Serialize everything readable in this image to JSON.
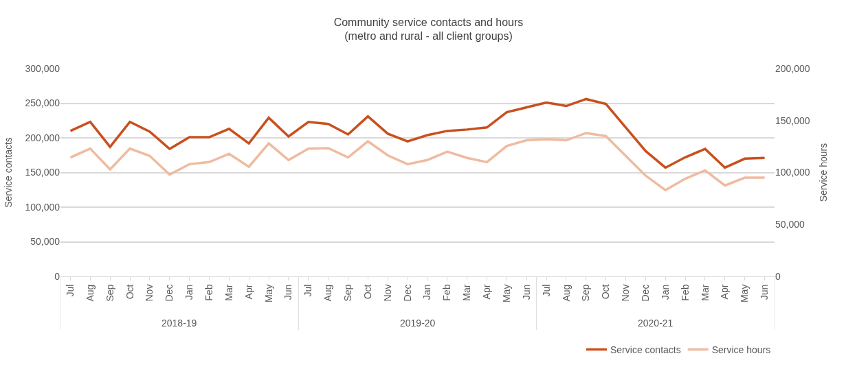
{
  "chart_data": {
    "type": "line",
    "title": "Community service contacts and hours",
    "subtitle": "(metro and rural - all client groups)",
    "ylabel": "Service contacts",
    "y2label": "Service hours",
    "categories": [
      "Jul",
      "Aug",
      "Sep",
      "Oct",
      "Nov",
      "Dec",
      "Jan",
      "Feb",
      "Mar",
      "Apr",
      "May",
      "Jun",
      "Jul",
      "Aug",
      "Sep",
      "Oct",
      "Nov",
      "Dec",
      "Jan",
      "Feb",
      "Mar",
      "Apr",
      "May",
      "Jun",
      "Jul",
      "Aug",
      "Sep",
      "Oct",
      "Nov",
      "Dec",
      "Jan",
      "Feb",
      "Mar",
      "Apr",
      "May",
      "Jun"
    ],
    "annotations": [
      "2018-19",
      "2019-20",
      "2020-21"
    ],
    "series": [
      {
        "name": "Service contacts",
        "color": "#c8501e",
        "values": [
          210000,
          223000,
          187000,
          223000,
          209000,
          184000,
          201000,
          201000,
          213000,
          192000,
          229000,
          202000,
          223000,
          220000,
          205000,
          231000,
          206000,
          195000,
          204000,
          210000,
          212000,
          215000,
          237000,
          244000,
          251000,
          246000,
          256000,
          249000,
          215000,
          181000,
          157000,
          172000,
          184000,
          157000,
          170000,
          171000
        ]
      },
      {
        "name": "Service hours",
        "color": "#efbba0",
        "axis": "y2",
        "values": [
          114500,
          123000,
          103000,
          123000,
          116000,
          98000,
          108000,
          110000,
          118000,
          105500,
          128000,
          112000,
          123000,
          123500,
          114500,
          130000,
          116500,
          108000,
          112000,
          120000,
          114000,
          110000,
          125500,
          131000,
          132000,
          131000,
          138000,
          135000,
          116000,
          97000,
          83000,
          94000,
          102000,
          87500,
          95000,
          95000
        ]
      }
    ],
    "ylim": [
      0,
      300000
    ],
    "yticks": [
      {
        "value": 0,
        "label": "0"
      },
      {
        "value": 50000,
        "label": "50,000"
      },
      {
        "value": 100000,
        "label": "100,000"
      },
      {
        "value": 150000,
        "label": "150,000"
      },
      {
        "value": 200000,
        "label": "200,000"
      },
      {
        "value": 250000,
        "label": "250,000"
      },
      {
        "value": 300000,
        "label": "300,000"
      }
    ],
    "y2lim": [
      0,
      200000
    ],
    "y2ticks": [
      {
        "value": 0,
        "label": "0"
      },
      {
        "value": 50000,
        "label": "50,000"
      },
      {
        "value": 100000,
        "label": "100,000"
      },
      {
        "value": 150000,
        "label": "150,000"
      },
      {
        "value": 200000,
        "label": "200,000"
      }
    ],
    "grid": "y",
    "legend": "bottom right",
    "line_style": "solid",
    "marker": "none"
  }
}
